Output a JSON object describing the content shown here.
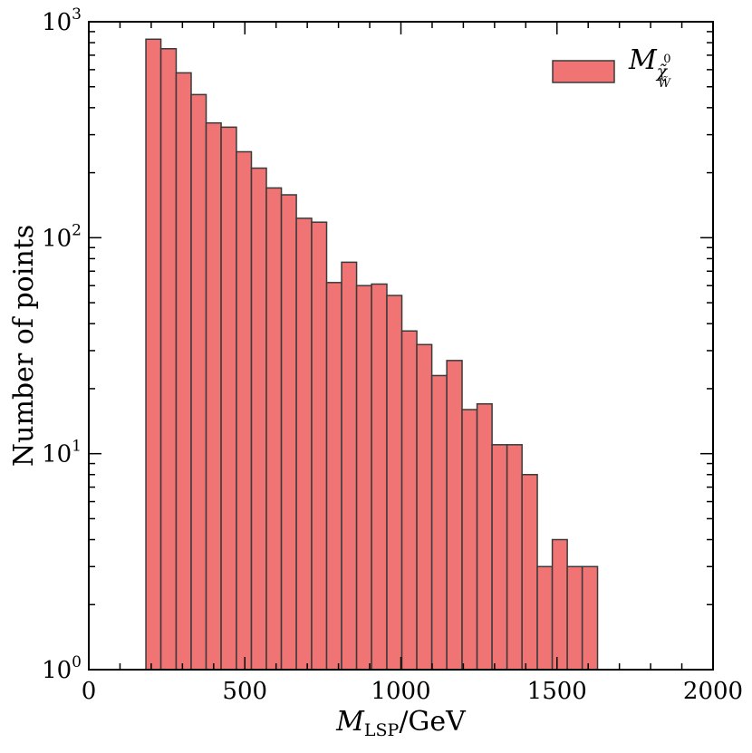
{
  "chart_data": {
    "type": "bar",
    "ylabel": "Number of points",
    "xlabel": {
      "main": "M",
      "sub": "LSP",
      "unit": "/GeV"
    },
    "xlim": [
      0,
      2000
    ],
    "ylim": [
      1,
      1000
    ],
    "yscale": "log",
    "x_ticks": [
      "0",
      "500",
      "1000",
      "1500",
      "2000"
    ],
    "y_ticks": [
      {
        "base": "10",
        "exp": "0"
      },
      {
        "base": "10",
        "exp": "1"
      },
      {
        "base": "10",
        "exp": "2"
      },
      {
        "base": "10",
        "exp": "3"
      }
    ],
    "legend": {
      "position": "top-right",
      "label": {
        "main": "M",
        "sub": "χ̃",
        "sub2": "W̃",
        "sup": "0"
      }
    },
    "style": {
      "fill": "#f07474",
      "edge": "#3a3a3a"
    },
    "bin_edges": [
      183,
      231,
      280,
      328,
      376,
      424,
      473,
      521,
      569,
      617,
      665,
      714,
      762,
      810,
      858,
      906,
      955,
      1003,
      1051,
      1099,
      1147,
      1196,
      1244,
      1292,
      1340,
      1388,
      1437,
      1485,
      1533,
      1581,
      1630
    ],
    "values": [
      830,
      750,
      580,
      460,
      340,
      325,
      250,
      210,
      170,
      158,
      123,
      118,
      62,
      77,
      60,
      61,
      54,
      37,
      32,
      23,
      27,
      16,
      17,
      11,
      11,
      8,
      3,
      4,
      3,
      3
    ]
  }
}
